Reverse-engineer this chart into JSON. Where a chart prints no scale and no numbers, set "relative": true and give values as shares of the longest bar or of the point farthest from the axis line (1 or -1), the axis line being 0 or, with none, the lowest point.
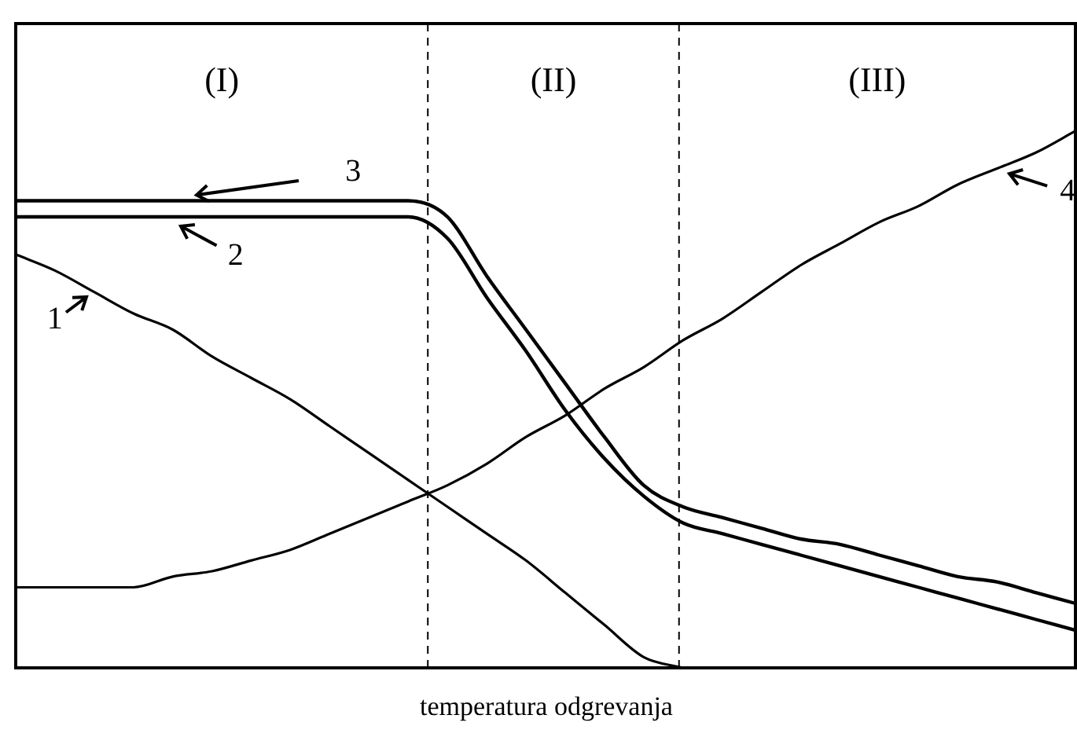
{
  "chart_data": {
    "type": "line",
    "relative": true,
    "xlabel": "temperatura odgrevanja",
    "categories": [
      null,
      null,
      null,
      null,
      null,
      null,
      null,
      null,
      null,
      null,
      null,
      null,
      null,
      null,
      null,
      null,
      null,
      null,
      null,
      null,
      null,
      null,
      null,
      null,
      null,
      null,
      null,
      null
    ],
    "series": [
      {
        "name": "1",
        "color": "#000000",
        "values": [
          0.77,
          0.74,
          0.7,
          0.66,
          0.63,
          0.58,
          0.54,
          0.5,
          0.45,
          0.4,
          0.35,
          0.3,
          0.25,
          0.2,
          0.14,
          0.08,
          0.02,
          0,
          null,
          null,
          null,
          null,
          null,
          null,
          null,
          null,
          null,
          null
        ]
      },
      {
        "name": "2",
        "color": "#000000",
        "values": [
          0.84,
          0.84,
          0.84,
          0.84,
          0.84,
          0.84,
          0.84,
          0.84,
          0.84,
          0.84,
          0.84,
          0.8,
          0.69,
          0.59,
          0.48,
          0.39,
          0.32,
          0.27,
          0.25,
          0.23,
          0.21,
          0.19,
          0.17,
          0.15,
          0.13,
          0.11,
          0.09,
          0.07
        ]
      },
      {
        "name": "3",
        "color": "#000000",
        "values": [
          0.87,
          0.87,
          0.87,
          0.87,
          0.87,
          0.87,
          0.87,
          0.87,
          0.87,
          0.87,
          0.87,
          0.84,
          0.73,
          0.63,
          0.53,
          0.43,
          0.34,
          0.3,
          0.28,
          0.26,
          0.24,
          0.23,
          0.21,
          0.19,
          0.17,
          0.16,
          0.14,
          0.12
        ]
      },
      {
        "name": "4",
        "color": "#000000",
        "values": [
          0.15,
          0.15,
          0.15,
          0.15,
          0.17,
          0.18,
          0.2,
          0.22,
          0.25,
          0.28,
          0.31,
          0.34,
          0.38,
          0.43,
          0.47,
          0.52,
          0.56,
          0.61,
          0.65,
          0.7,
          0.75,
          0.79,
          0.83,
          0.86,
          0.9,
          0.93,
          0.96,
          1.0
        ]
      }
    ],
    "annotations": [
      "(I)",
      "(II)",
      "(III)"
    ],
    "legend": "top",
    "marker": "none",
    "line_style": "solid"
  }
}
